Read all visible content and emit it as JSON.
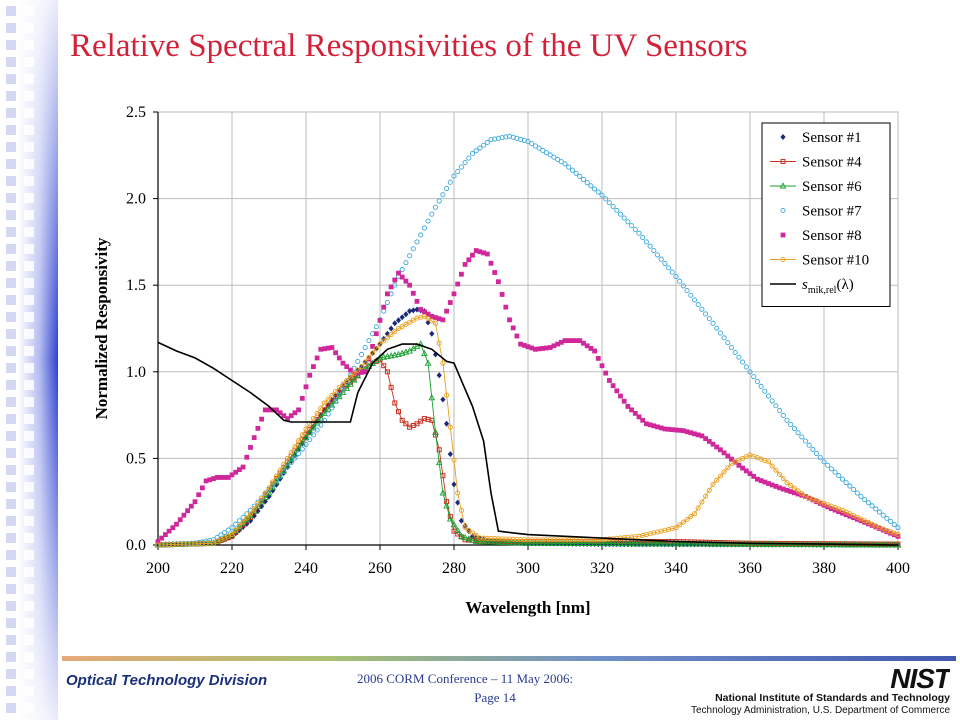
{
  "slide": {
    "title": "Relative Spectral Responsivities of the UV Sensors",
    "footer_left": "Optical Technology Division",
    "footer_conference": "2006 CORM Conference – 11 May 2006:",
    "footer_page": "Page 14",
    "nist_logo_text": "NIST",
    "nist_name": "National Institute of Standards and Technology",
    "nist_sub": "Technology Administration, U.S. Department of Commerce"
  },
  "colors": {
    "title": "#d2223a",
    "footer_text": "#1a2f7a",
    "rail": "#2b3fd0"
  },
  "chart_data": {
    "type": "scatter",
    "title": "",
    "xlabel": "Wavelength [nm]",
    "ylabel": "Normalized Responsivity",
    "xlim": [
      200,
      400
    ],
    "ylim": [
      0,
      2.5
    ],
    "x_ticks": [
      "200",
      "220",
      "240",
      "260",
      "280",
      "300",
      "320",
      "340",
      "360",
      "380",
      "400"
    ],
    "y_ticks": [
      "0.0",
      "0.5",
      "1.0",
      "1.5",
      "2.0",
      "2.5"
    ],
    "grid": true,
    "legend_position": "top-right",
    "series": [
      {
        "name": "Sensor #1",
        "color": "#1a2a7a",
        "marker": "diamond",
        "points": [
          [
            200,
            0
          ],
          [
            215,
            0.01
          ],
          [
            220,
            0.05
          ],
          [
            225,
            0.14
          ],
          [
            230,
            0.28
          ],
          [
            235,
            0.45
          ],
          [
            240,
            0.62
          ],
          [
            245,
            0.78
          ],
          [
            250,
            0.92
          ],
          [
            255,
            1.03
          ],
          [
            260,
            1.16
          ],
          [
            264,
            1.28
          ],
          [
            268,
            1.35
          ],
          [
            270,
            1.36
          ],
          [
            272,
            1.35
          ],
          [
            274,
            1.22
          ],
          [
            276,
            0.98
          ],
          [
            278,
            0.7
          ],
          [
            280,
            0.35
          ],
          [
            282,
            0.14
          ],
          [
            285,
            0.05
          ],
          [
            290,
            0.02
          ],
          [
            300,
            0.01
          ],
          [
            320,
            0.005
          ],
          [
            400,
            0
          ]
        ]
      },
      {
        "name": "Sensor #4",
        "color": "#c83020",
        "marker": "square",
        "points": [
          [
            200,
            0
          ],
          [
            215,
            0.01
          ],
          [
            220,
            0.05
          ],
          [
            225,
            0.16
          ],
          [
            230,
            0.32
          ],
          [
            235,
            0.48
          ],
          [
            240,
            0.64
          ],
          [
            245,
            0.78
          ],
          [
            250,
            0.9
          ],
          [
            255,
            1.0
          ],
          [
            258,
            1.05
          ],
          [
            260,
            1.07
          ],
          [
            262,
            1.0
          ],
          [
            264,
            0.82
          ],
          [
            266,
            0.72
          ],
          [
            268,
            0.68
          ],
          [
            270,
            0.7
          ],
          [
            272,
            0.73
          ],
          [
            274,
            0.72
          ],
          [
            276,
            0.55
          ],
          [
            278,
            0.25
          ],
          [
            280,
            0.08
          ],
          [
            283,
            0.03
          ],
          [
            290,
            0.02
          ],
          [
            300,
            0.02
          ],
          [
            340,
            0.02
          ],
          [
            360,
            0.01
          ],
          [
            400,
            0.005
          ]
        ]
      },
      {
        "name": "Sensor #6",
        "color": "#18a030",
        "marker": "triangle",
        "points": [
          [
            200,
            0
          ],
          [
            215,
            0.01
          ],
          [
            220,
            0.06
          ],
          [
            225,
            0.17
          ],
          [
            230,
            0.3
          ],
          [
            235,
            0.46
          ],
          [
            240,
            0.62
          ],
          [
            245,
            0.76
          ],
          [
            250,
            0.88
          ],
          [
            255,
            1.0
          ],
          [
            260,
            1.08
          ],
          [
            265,
            1.1
          ],
          [
            268,
            1.12
          ],
          [
            271,
            1.16
          ],
          [
            273,
            1.05
          ],
          [
            275,
            0.65
          ],
          [
            277,
            0.3
          ],
          [
            279,
            0.15
          ],
          [
            282,
            0.05
          ],
          [
            286,
            0.02
          ],
          [
            300,
            0.01
          ],
          [
            400,
            0
          ]
        ]
      },
      {
        "name": "Sensor #7",
        "color": "#3aa8dc",
        "marker": "circle",
        "points": [
          [
            200,
            0
          ],
          [
            210,
            0.01
          ],
          [
            215,
            0.03
          ],
          [
            220,
            0.1
          ],
          [
            225,
            0.2
          ],
          [
            230,
            0.32
          ],
          [
            235,
            0.45
          ],
          [
            240,
            0.58
          ],
          [
            245,
            0.72
          ],
          [
            250,
            0.9
          ],
          [
            255,
            1.1
          ],
          [
            260,
            1.3
          ],
          [
            265,
            1.55
          ],
          [
            270,
            1.75
          ],
          [
            275,
            1.95
          ],
          [
            280,
            2.13
          ],
          [
            285,
            2.26
          ],
          [
            290,
            2.34
          ],
          [
            295,
            2.36
          ],
          [
            300,
            2.33
          ],
          [
            310,
            2.2
          ],
          [
            320,
            2.02
          ],
          [
            330,
            1.8
          ],
          [
            340,
            1.55
          ],
          [
            350,
            1.28
          ],
          [
            360,
            1.0
          ],
          [
            370,
            0.72
          ],
          [
            380,
            0.48
          ],
          [
            390,
            0.28
          ],
          [
            400,
            0.1
          ]
        ]
      },
      {
        "name": "Sensor #8",
        "color": "#d0289a",
        "marker": "square-filled",
        "points": [
          [
            200,
            0.02
          ],
          [
            205,
            0.12
          ],
          [
            210,
            0.25
          ],
          [
            213,
            0.37
          ],
          [
            216,
            0.39
          ],
          [
            219,
            0.39
          ],
          [
            223,
            0.45
          ],
          [
            226,
            0.62
          ],
          [
            229,
            0.78
          ],
          [
            232,
            0.78
          ],
          [
            235,
            0.73
          ],
          [
            238,
            0.78
          ],
          [
            241,
            0.98
          ],
          [
            244,
            1.13
          ],
          [
            247,
            1.14
          ],
          [
            250,
            1.05
          ],
          [
            253,
            0.99
          ],
          [
            256,
            1.0
          ],
          [
            259,
            1.22
          ],
          [
            262,
            1.45
          ],
          [
            265,
            1.57
          ],
          [
            268,
            1.5
          ],
          [
            271,
            1.36
          ],
          [
            274,
            1.32
          ],
          [
            277,
            1.3
          ],
          [
            280,
            1.45
          ],
          [
            283,
            1.62
          ],
          [
            286,
            1.7
          ],
          [
            289,
            1.68
          ],
          [
            292,
            1.52
          ],
          [
            295,
            1.3
          ],
          [
            298,
            1.16
          ],
          [
            302,
            1.13
          ],
          [
            306,
            1.14
          ],
          [
            310,
            1.18
          ],
          [
            314,
            1.18
          ],
          [
            318,
            1.12
          ],
          [
            322,
            0.95
          ],
          [
            327,
            0.8
          ],
          [
            332,
            0.7
          ],
          [
            337,
            0.67
          ],
          [
            342,
            0.66
          ],
          [
            347,
            0.63
          ],
          [
            352,
            0.55
          ],
          [
            357,
            0.46
          ],
          [
            362,
            0.38
          ],
          [
            368,
            0.33
          ],
          [
            375,
            0.28
          ],
          [
            382,
            0.21
          ],
          [
            390,
            0.14
          ],
          [
            400,
            0.05
          ]
        ]
      },
      {
        "name": "Sensor #10",
        "color": "#e8a020",
        "marker": "circle",
        "points": [
          [
            200,
            0
          ],
          [
            215,
            0.01
          ],
          [
            220,
            0.06
          ],
          [
            225,
            0.18
          ],
          [
            230,
            0.33
          ],
          [
            235,
            0.5
          ],
          [
            240,
            0.67
          ],
          [
            245,
            0.82
          ],
          [
            250,
            0.93
          ],
          [
            255,
            1.03
          ],
          [
            260,
            1.16
          ],
          [
            265,
            1.25
          ],
          [
            270,
            1.31
          ],
          [
            272,
            1.32
          ],
          [
            275,
            1.28
          ],
          [
            277,
            1.05
          ],
          [
            279,
            0.68
          ],
          [
            281,
            0.3
          ],
          [
            283,
            0.1
          ],
          [
            287,
            0.04
          ],
          [
            300,
            0.03
          ],
          [
            320,
            0.03
          ],
          [
            330,
            0.05
          ],
          [
            340,
            0.1
          ],
          [
            345,
            0.18
          ],
          [
            350,
            0.35
          ],
          [
            355,
            0.47
          ],
          [
            360,
            0.52
          ],
          [
            365,
            0.48
          ],
          [
            370,
            0.36
          ],
          [
            375,
            0.28
          ],
          [
            380,
            0.24
          ],
          [
            385,
            0.2
          ],
          [
            390,
            0.15
          ],
          [
            395,
            0.1
          ],
          [
            400,
            0.06
          ]
        ]
      },
      {
        "name": "s_mik,rel(λ)",
        "color": "#000000",
        "marker": "none",
        "points": [
          [
            200,
            1.17
          ],
          [
            205,
            1.12
          ],
          [
            210,
            1.08
          ],
          [
            215,
            1.02
          ],
          [
            220,
            0.95
          ],
          [
            225,
            0.88
          ],
          [
            230,
            0.8
          ],
          [
            234,
            0.72
          ],
          [
            236,
            0.71
          ],
          [
            240,
            0.71
          ],
          [
            245,
            0.71
          ],
          [
            250,
            0.71
          ],
          [
            252,
            0.71
          ],
          [
            254,
            0.88
          ],
          [
            258,
            1.05
          ],
          [
            262,
            1.13
          ],
          [
            266,
            1.16
          ],
          [
            270,
            1.16
          ],
          [
            274,
            1.13
          ],
          [
            278,
            1.06
          ],
          [
            280,
            1.05
          ],
          [
            282,
            0.95
          ],
          [
            285,
            0.8
          ],
          [
            288,
            0.6
          ],
          [
            290,
            0.3
          ],
          [
            292,
            0.08
          ],
          [
            296,
            0.07
          ],
          [
            300,
            0.06
          ],
          [
            310,
            0.05
          ],
          [
            320,
            0.04
          ],
          [
            330,
            0.03
          ],
          [
            340,
            0.02
          ],
          [
            360,
            0.01
          ],
          [
            380,
            0.005
          ],
          [
            400,
            0.0
          ]
        ]
      }
    ]
  }
}
